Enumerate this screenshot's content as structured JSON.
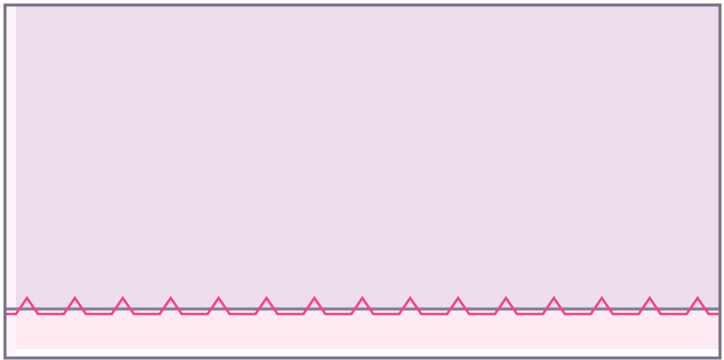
{
  "panel": {
    "upper_fill": "#eedeed",
    "lower_fill": "#fdeaf3",
    "edge_fill": "#fdf4f9",
    "border_color": "#7a7085",
    "divider_color": "#867b90"
  },
  "wave": {
    "color": "#ee4792",
    "peak_count": 15,
    "shape": "zigzag"
  }
}
